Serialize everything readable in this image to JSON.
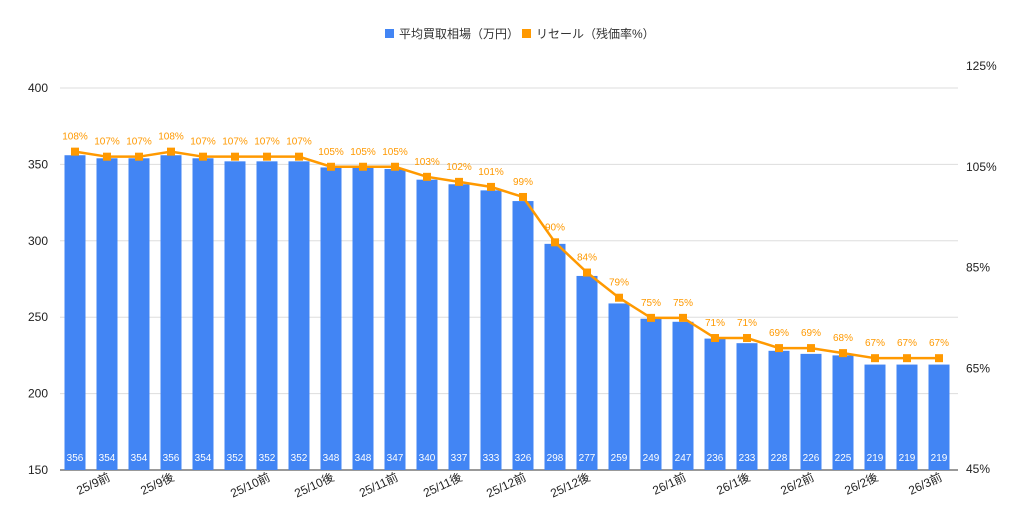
{
  "chart_data": {
    "type": "bar+line",
    "categories": [
      "",
      "25/9前",
      "",
      "25/9後",
      "",
      "",
      "25/10前",
      "",
      "25/10後",
      "",
      "25/11前",
      "",
      "25/11後",
      "",
      "25/12前",
      "",
      "25/12後",
      "",
      "",
      "26/1前",
      "",
      "26/1後",
      "",
      "26/2前",
      "",
      "26/2後",
      "",
      "26/3前"
    ],
    "series": [
      {
        "name": "平均買取相場（万円）",
        "type": "bar",
        "axis": "left",
        "color": "#4285f4",
        "values": [
          356,
          354,
          354,
          356,
          354,
          352,
          352,
          352,
          348,
          348,
          347,
          340,
          337,
          333,
          326,
          298,
          277,
          259,
          249,
          247,
          236,
          233,
          228,
          226,
          225,
          219,
          219,
          219
        ]
      },
      {
        "name": "リセール（残価率%）",
        "type": "line",
        "axis": "right",
        "color": "#ff9900",
        "values": [
          108,
          107,
          107,
          108,
          107,
          107,
          107,
          107,
          105,
          105,
          105,
          103,
          102,
          101,
          99,
          90,
          84,
          79,
          75,
          75,
          71,
          71,
          69,
          69,
          68,
          67,
          67,
          67
        ]
      }
    ],
    "left_axis": {
      "ticks": [
        "150",
        "200",
        "250",
        "300",
        "350",
        "400"
      ],
      "min": 150,
      "max": 400
    },
    "right_axis": {
      "ticks": [
        "45%",
        "65%",
        "85%",
        "105%",
        "125%"
      ],
      "min": 45,
      "max": 125
    },
    "grid": true,
    "legend": "top"
  }
}
